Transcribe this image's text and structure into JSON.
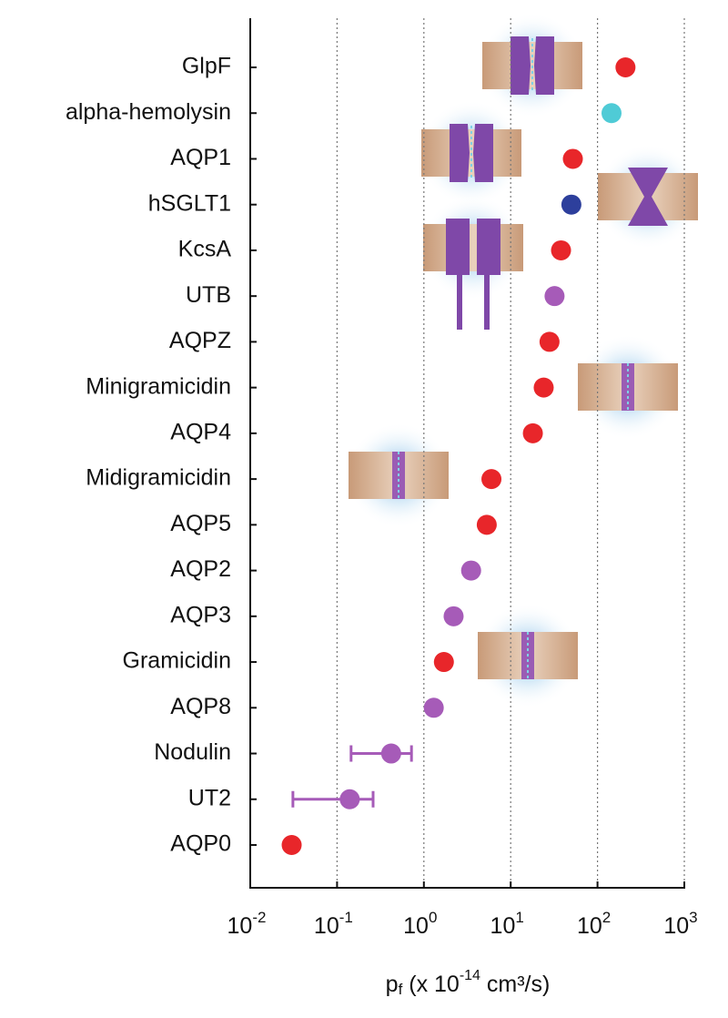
{
  "chart_data": {
    "type": "dot",
    "categories": [
      "GlpF",
      "alpha-hemolysin",
      "AQP1",
      "hSGLT1",
      "KcsA",
      "UTB",
      "AQPZ",
      "Minigramicidin",
      "AQP4",
      "Midigramicidin",
      "AQP5",
      "AQP2",
      "AQP3",
      "Gramicidin",
      "AQP8",
      "Nodulin",
      "UT2",
      "AQP0"
    ],
    "values": [
      210,
      145,
      52,
      50,
      38,
      32,
      28,
      24,
      18,
      6.0,
      5.3,
      3.5,
      2.2,
      1.7,
      1.3,
      0.42,
      0.14,
      0.03
    ],
    "err_low": [
      null,
      null,
      null,
      null,
      null,
      null,
      null,
      null,
      null,
      null,
      null,
      null,
      null,
      null,
      null,
      0.145,
      0.031,
      null
    ],
    "err_high": [
      null,
      null,
      null,
      null,
      null,
      null,
      null,
      null,
      null,
      null,
      null,
      null,
      null,
      null,
      null,
      0.72,
      0.26,
      null
    ],
    "colors": [
      "#e8262a",
      "#4fcbd6",
      "#e8262a",
      "#2d3f9c",
      "#e8262a",
      "#a65bb8",
      "#e8262a",
      "#e8262a",
      "#e8262a",
      "#e8262a",
      "#e8262a",
      "#a65bb8",
      "#a65bb8",
      "#e8262a",
      "#a65bb8",
      "#a65bb8",
      "#a65bb8",
      "#e8262a"
    ],
    "xlim": [
      0.01,
      1000
    ],
    "xticks": [
      {
        "value": 0.01,
        "label": "10",
        "exponent": "-2"
      },
      {
        "value": 0.1,
        "label": "10",
        "exponent": "-1"
      },
      {
        "value": 1,
        "label": "10",
        "exponent": "0"
      },
      {
        "value": 10,
        "label": "10",
        "exponent": "1"
      },
      {
        "value": 100,
        "label": "10",
        "exponent": "2"
      },
      {
        "value": 1000,
        "label": "10",
        "exponent": "3"
      }
    ],
    "xscale": "log",
    "grid": true,
    "xlabel": {
      "base": "p",
      "sub": "f",
      "middle": " (x 10",
      "sup": "-14",
      "end": " cm³/s)"
    }
  }
}
